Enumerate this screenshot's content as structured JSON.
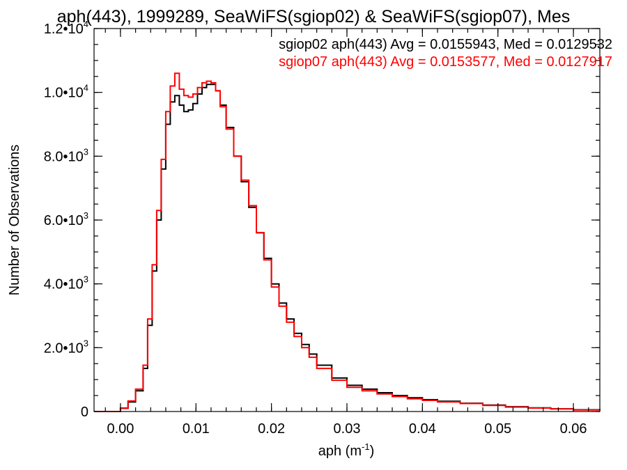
{
  "chart_data": {
    "type": "line",
    "step": true,
    "title": "aph(443), 1999289, SeaWiFS(sgiop02) & SeaWiFS(sgiop07), Mes",
    "xlabel": "aph (m",
    "xlabel_sup": "-1",
    "xlabel_end": ")",
    "ylabel": "Number of Observations",
    "xlim": [
      -0.0035,
      0.0635
    ],
    "ylim": [
      0,
      12000
    ],
    "grid": false,
    "legend_position": "top-right",
    "x_ticks": [
      {
        "value": 0.0,
        "label": "0.00"
      },
      {
        "value": 0.01,
        "label": "0.01"
      },
      {
        "value": 0.02,
        "label": "0.02"
      },
      {
        "value": 0.03,
        "label": "0.03"
      },
      {
        "value": 0.04,
        "label": "0.04"
      },
      {
        "value": 0.05,
        "label": "0.05"
      },
      {
        "value": 0.06,
        "label": "0.06"
      }
    ],
    "y_ticks": [
      {
        "value": 0,
        "mantissa": "0",
        "exp": ""
      },
      {
        "value": 2000,
        "mantissa": "2.0•10",
        "exp": "3"
      },
      {
        "value": 4000,
        "mantissa": "4.0•10",
        "exp": "3"
      },
      {
        "value": 6000,
        "mantissa": "6.0•10",
        "exp": "3"
      },
      {
        "value": 8000,
        "mantissa": "8.0•10",
        "exp": "3"
      },
      {
        "value": 10000,
        "mantissa": "1.0•10",
        "exp": "4"
      },
      {
        "value": 12000,
        "mantissa": "1.2•10",
        "exp": "4"
      }
    ],
    "series": [
      {
        "name": "sgiop02",
        "legend": "sgiop02 aph(443) Avg = 0.0155943, Med = 0.0129532",
        "color": "#000000",
        "x": [
          -0.0035,
          -0.0006,
          0.0,
          0.001,
          0.002,
          0.003,
          0.0036,
          0.0042,
          0.0048,
          0.0054,
          0.006,
          0.0066,
          0.0072,
          0.0078,
          0.0084,
          0.009,
          0.0096,
          0.0102,
          0.0108,
          0.0114,
          0.012,
          0.0126,
          0.0132,
          0.014,
          0.015,
          0.016,
          0.017,
          0.018,
          0.019,
          0.02,
          0.021,
          0.022,
          0.023,
          0.024,
          0.025,
          0.026,
          0.028,
          0.03,
          0.032,
          0.034,
          0.036,
          0.038,
          0.04,
          0.042,
          0.045,
          0.048,
          0.051,
          0.054,
          0.057,
          0.06,
          0.0635
        ],
        "y": [
          0,
          0,
          100,
          300,
          650,
          1350,
          2700,
          4400,
          6000,
          7600,
          9000,
          9700,
          9900,
          9600,
          9400,
          9450,
          9650,
          9950,
          10150,
          10250,
          10250,
          10050,
          9600,
          8900,
          8000,
          7200,
          6400,
          5600,
          4800,
          4000,
          3400,
          2900,
          2450,
          2100,
          1800,
          1450,
          1050,
          820,
          700,
          590,
          500,
          430,
          370,
          320,
          260,
          200,
          150,
          115,
          85,
          55,
          30
        ]
      },
      {
        "name": "sgiop07",
        "legend": "sgiop07 aph(443) Avg = 0.0153577, Med = 0.0127917",
        "color": "#ff0000",
        "x": [
          -0.0035,
          -0.0006,
          0.0,
          0.001,
          0.002,
          0.003,
          0.0036,
          0.0042,
          0.0048,
          0.0054,
          0.006,
          0.0066,
          0.0072,
          0.0078,
          0.0084,
          0.009,
          0.0096,
          0.0102,
          0.0108,
          0.0114,
          0.012,
          0.0126,
          0.0132,
          0.014,
          0.015,
          0.016,
          0.017,
          0.018,
          0.019,
          0.02,
          0.021,
          0.022,
          0.023,
          0.024,
          0.025,
          0.026,
          0.028,
          0.03,
          0.032,
          0.034,
          0.036,
          0.038,
          0.04,
          0.042,
          0.045,
          0.048,
          0.051,
          0.054,
          0.057,
          0.06,
          0.0635
        ],
        "y": [
          0,
          0,
          110,
          330,
          700,
          1450,
          2900,
          4600,
          6300,
          7900,
          9400,
          10200,
          10600,
          10100,
          9900,
          9850,
          9950,
          10150,
          10300,
          10350,
          10300,
          10050,
          9550,
          8850,
          8000,
          7250,
          6450,
          5600,
          4750,
          3900,
          3300,
          2800,
          2350,
          2000,
          1700,
          1350,
          980,
          760,
          650,
          550,
          470,
          400,
          350,
          300,
          250,
          190,
          140,
          110,
          80,
          50,
          30
        ]
      }
    ]
  }
}
